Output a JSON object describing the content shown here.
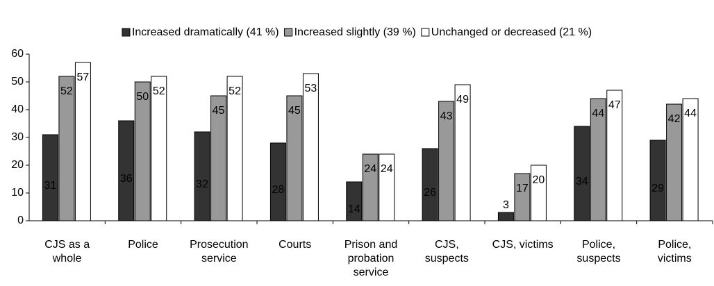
{
  "chart_data": {
    "type": "bar",
    "categories": [
      "CJS as a whole",
      "Police",
      "Prosecution service",
      "Courts",
      "Prison and probation service",
      "CJS, suspects",
      "CJS, victims",
      "Police, suspects",
      "Police, victims"
    ],
    "series": [
      {
        "name": "Increased dramatically (41 %)",
        "color": "#333333",
        "values": [
          31,
          36,
          32,
          28,
          14,
          26,
          3,
          34,
          29
        ]
      },
      {
        "name": "Increased slightly (39 %)",
        "color": "#999999",
        "values": [
          52,
          50,
          45,
          45,
          24,
          43,
          17,
          44,
          42
        ]
      },
      {
        "name": "Unchanged or decreased (21 %)",
        "color": "#ffffff",
        "values": [
          57,
          52,
          52,
          53,
          24,
          49,
          20,
          47,
          44
        ]
      }
    ],
    "ylim": [
      0,
      60
    ],
    "yticks": [
      0,
      10,
      20,
      30,
      40,
      50,
      60
    ],
    "legend": "top"
  }
}
